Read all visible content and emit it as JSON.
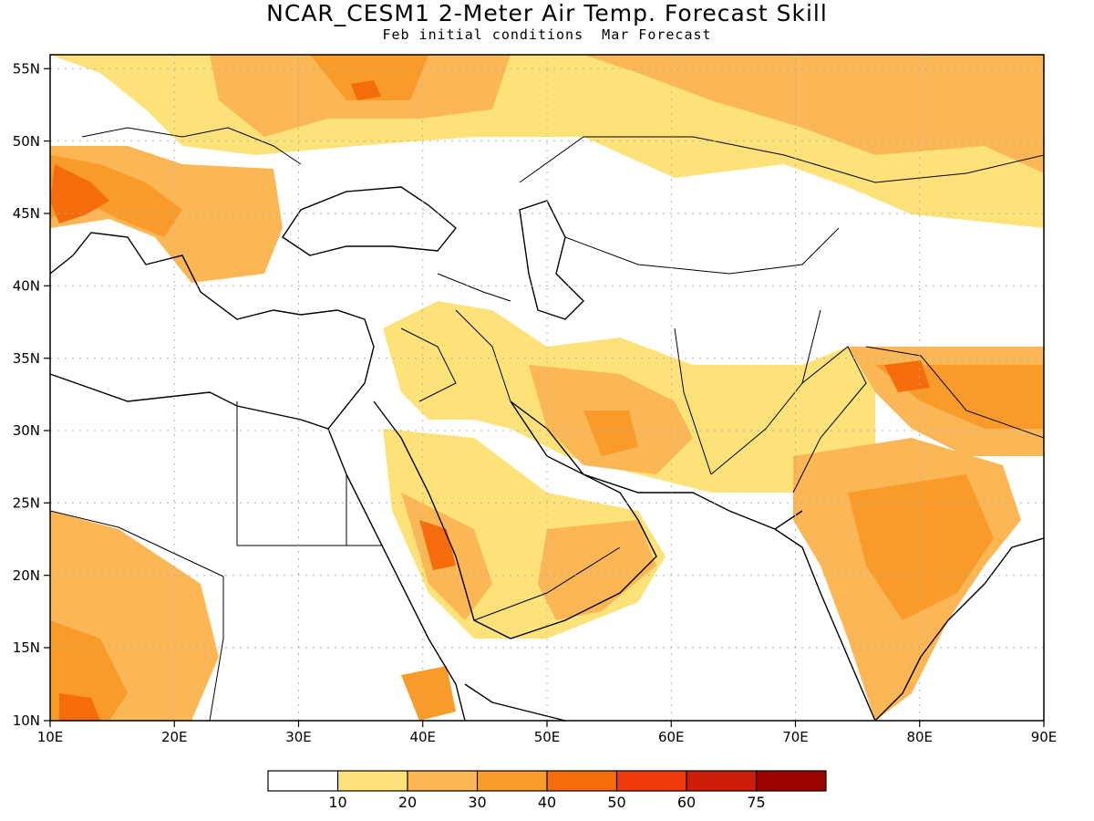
{
  "title": "NCAR_CESM1 2-Meter Air Temp. Forecast Skill",
  "subtitle": "Feb initial conditions  Mar Forecast",
  "map": {
    "lon_range": [
      10,
      90
    ],
    "lat_range": [
      10,
      56
    ],
    "lon_ticks": [
      "10E",
      "20E",
      "30E",
      "40E",
      "50E",
      "60E",
      "70E",
      "80E",
      "90E"
    ],
    "lat_ticks": [
      "55N",
      "50N",
      "45N",
      "40N",
      "35N",
      "30N",
      "25N",
      "20N",
      "15N",
      "10N"
    ],
    "gridlines": "dotted"
  },
  "colorbar": {
    "colors": [
      "#ffffff",
      "#fde27a",
      "#fbb755",
      "#f99b2a",
      "#f46c0c",
      "#ee3a0a",
      "#cc1e09",
      "#9b0402"
    ],
    "labels": [
      "10",
      "20",
      "30",
      "40",
      "50",
      "60",
      "75"
    ]
  }
}
